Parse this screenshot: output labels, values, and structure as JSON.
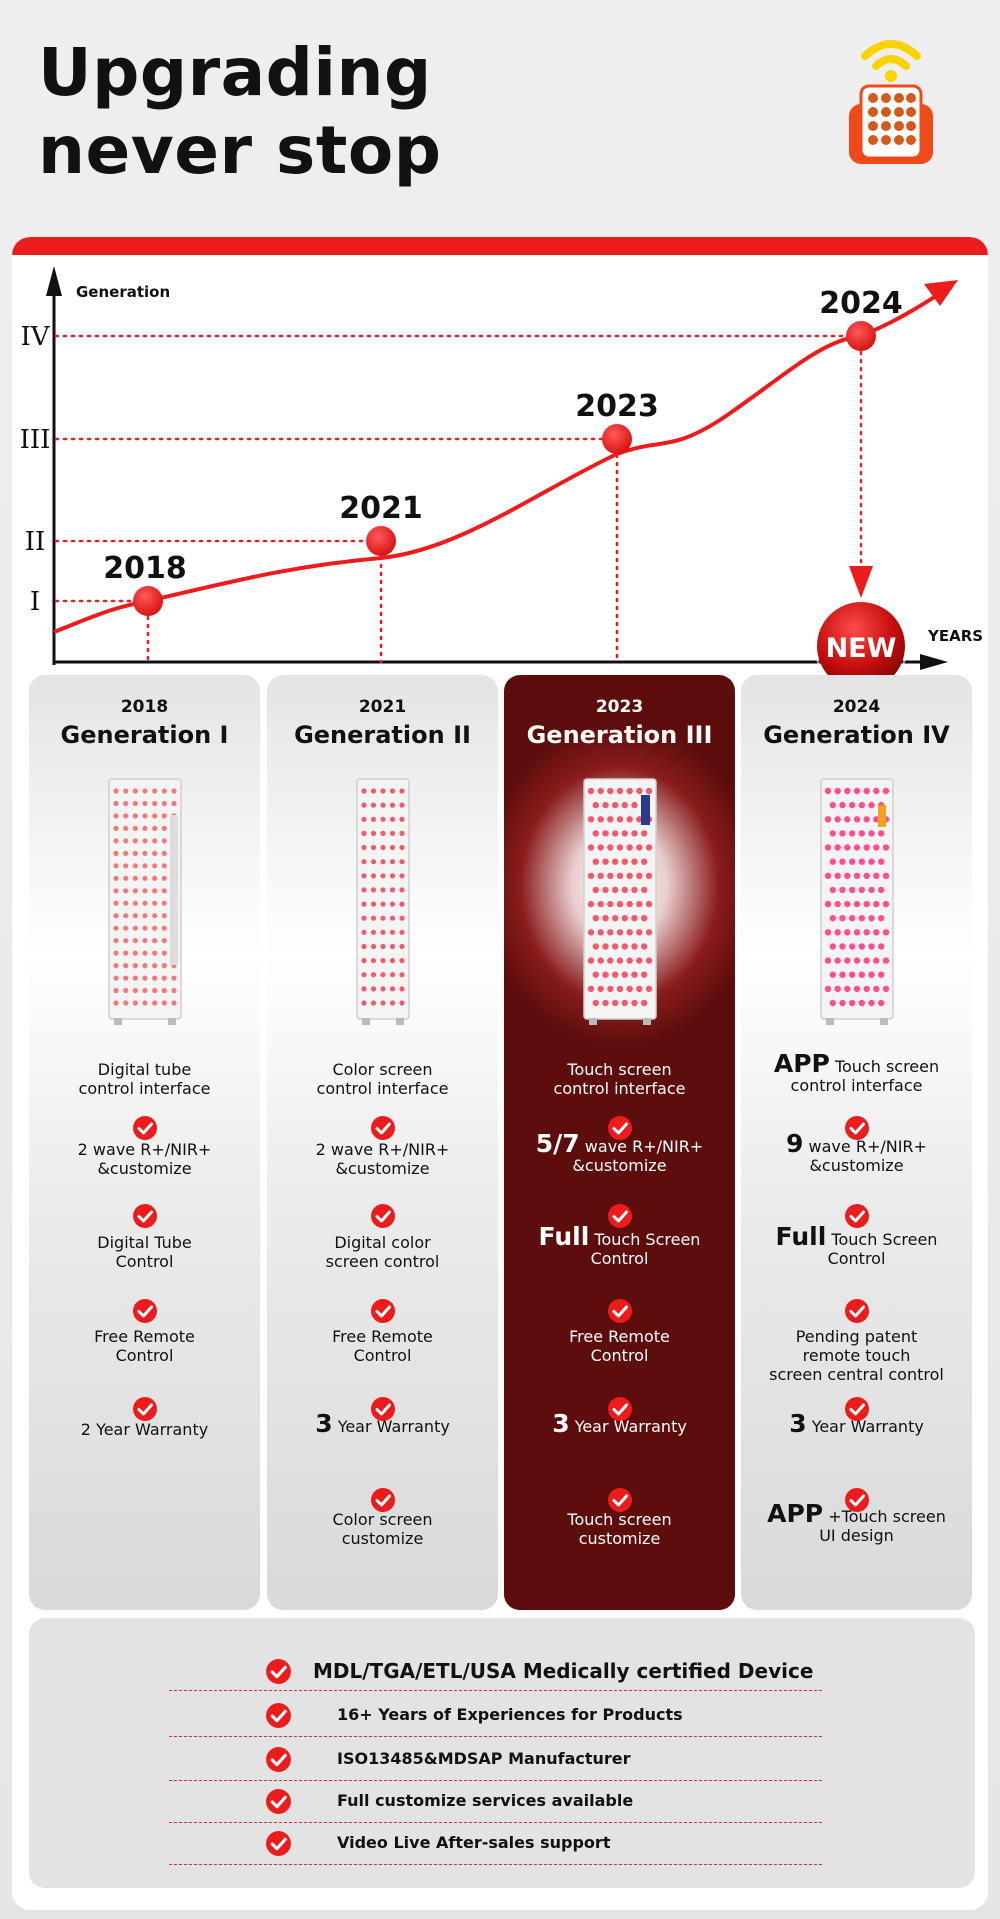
{
  "headline": {
    "line1": "Upgrading",
    "line2": "never stop"
  },
  "icons": {
    "remote": "wifi-remote-icon",
    "check": "red-check-icon",
    "new_badge": "new-badge"
  },
  "colors": {
    "accent": "#ec1c1c",
    "highlight": "#5e0d0d",
    "card": "#ffffff"
  },
  "chart_data": {
    "type": "line",
    "ylabel": "Generation",
    "xlabel": "YEARS",
    "y_ticks": [
      "I",
      "II",
      "III",
      "IV"
    ],
    "points": [
      {
        "year": "2018",
        "generation": 1
      },
      {
        "year": "2021",
        "generation": 2
      },
      {
        "year": "2023",
        "generation": 3
      },
      {
        "year": "2024",
        "generation": 4
      }
    ],
    "badge": "NEW"
  },
  "columns": [
    {
      "year": "2018",
      "title": "Generation I",
      "features": [
        {
          "lead": "",
          "text": "Digital tube\ncontrol interface"
        },
        {
          "lead": "",
          "text": "2 wave R+/NIR+\n&customize"
        },
        {
          "lead": "",
          "text": "Digital Tube\nControl"
        },
        {
          "lead": "",
          "text": "Free Remote\nControl"
        },
        {
          "lead": "",
          "text": "2 Year Warranty"
        }
      ]
    },
    {
      "year": "2021",
      "title": "Generation II",
      "features": [
        {
          "lead": "",
          "text": "Color screen\ncontrol interface"
        },
        {
          "lead": "",
          "text": "2 wave R+/NIR+\n&customize"
        },
        {
          "lead": "",
          "text": "Digital color\nscreen control"
        },
        {
          "lead": "",
          "text": "Free Remote\nControl"
        },
        {
          "lead": "3",
          "text": "Year Warranty"
        },
        {
          "lead": "",
          "text": "Color screen\ncustomize"
        }
      ]
    },
    {
      "year": "2023",
      "title": "Generation III",
      "features": [
        {
          "lead": "",
          "text": "Touch screen\ncontrol interface"
        },
        {
          "lead": "5/7",
          "text": "wave R+/NIR+\n&customize"
        },
        {
          "lead": "Full",
          "text": "Touch Screen\nControl"
        },
        {
          "lead": "",
          "text": "Free Remote\nControl"
        },
        {
          "lead": "3",
          "text": "Year Warranty"
        },
        {
          "lead": "",
          "text": "Touch screen\ncustomize"
        }
      ]
    },
    {
      "year": "2024",
      "title": "Generation IV",
      "features": [
        {
          "lead": "APP",
          "text": "Touch screen\ncontrol interface"
        },
        {
          "lead": "9",
          "text": "wave R+/NIR+\n&customize"
        },
        {
          "lead": "Full",
          "text": "Touch Screen\nControl"
        },
        {
          "lead": "",
          "text": "Pending patent\nremote touch\nscreen central control"
        },
        {
          "lead": "3",
          "text": "Year Warranty"
        },
        {
          "lead": "APP",
          "text": "+Touch screen\nUI design"
        }
      ]
    }
  ],
  "bottom_list": [
    "MDL/TGA/ETL/USA Medically certified Device",
    "16+ Years of Experiences for Products",
    "ISO13485&MDSAP Manufacturer",
    "Full customize services available",
    "Video Live After-sales support"
  ]
}
